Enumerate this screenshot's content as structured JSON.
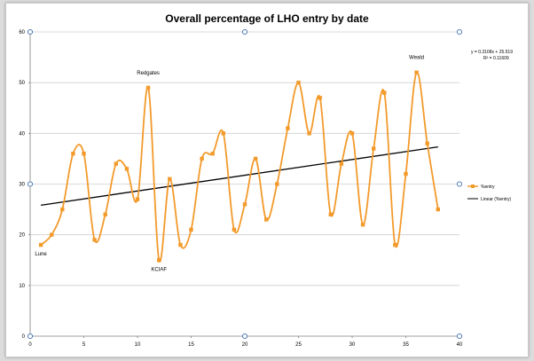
{
  "chart_data": {
    "type": "line",
    "title": "Overall percentage of LHO entry by date",
    "xlabel": "",
    "ylabel": "",
    "xlim": [
      0,
      40
    ],
    "ylim": [
      0,
      60
    ],
    "x_ticks": [
      0,
      5,
      10,
      15,
      20,
      25,
      30,
      35,
      40
    ],
    "y_ticks": [
      0,
      10,
      20,
      30,
      40,
      50,
      60
    ],
    "grid": "horizontal",
    "legend_position": "right",
    "colors": {
      "series": "#f39a2b",
      "trendline": "#000000",
      "grid": "#cfcfcf",
      "axis": "#808080",
      "handle": "#3f6fb5"
    },
    "series": [
      {
        "name": "%entry",
        "smooth": true,
        "x": [
          1,
          2,
          3,
          4,
          5,
          6,
          7,
          8,
          9,
          10,
          11,
          12,
          13,
          14,
          15,
          16,
          17,
          18,
          19,
          20,
          21,
          22,
          23,
          24,
          25,
          26,
          27,
          28,
          29,
          30,
          31,
          32,
          33,
          34,
          35,
          36,
          37,
          38
        ],
        "y": [
          18,
          20,
          25,
          36,
          36,
          19,
          24,
          34,
          33,
          27,
          49,
          15,
          31,
          18,
          21,
          35,
          36,
          40,
          21,
          26,
          35,
          23,
          30,
          41,
          50,
          40,
          47,
          24,
          34,
          40,
          22,
          37,
          48,
          18,
          32,
          52,
          38,
          25
        ]
      }
    ],
    "trendline": {
      "name": "Linear (%entry)",
      "type": "linear",
      "slope": 0.3108,
      "intercept": 25.519,
      "equation": "y = 0.3108x + 25.519",
      "r2": "R² = 0.11609"
    },
    "annotations": [
      {
        "text": "Lune",
        "x": 1,
        "y": 18,
        "position": "below"
      },
      {
        "text": "Redgates",
        "x": 11,
        "y": 49,
        "position": "above"
      },
      {
        "text": "KCIAF",
        "x": 12,
        "y": 15,
        "position": "below"
      },
      {
        "text": "Weald",
        "x": 36,
        "y": 52,
        "position": "above"
      }
    ]
  }
}
